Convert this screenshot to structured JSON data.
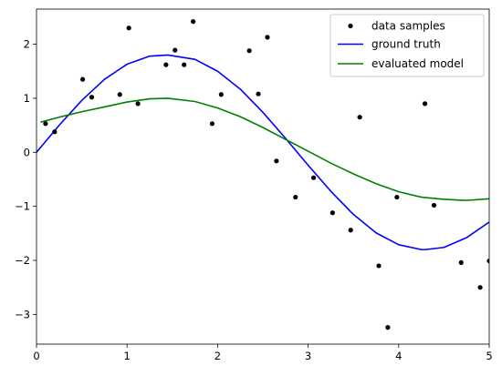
{
  "chart_data": {
    "type": "line",
    "title": "",
    "xlabel": "",
    "ylabel": "",
    "xlim": [
      0,
      5
    ],
    "ylim": [
      -3.55,
      2.65
    ],
    "xticks": [
      0,
      1,
      2,
      3,
      4,
      5
    ],
    "xtick_labels": [
      "0",
      "1",
      "2",
      "3",
      "4",
      "5"
    ],
    "yticks": [
      -3,
      -2,
      -1,
      0,
      1,
      2
    ],
    "ytick_labels": [
      "−3",
      "−2",
      "−1",
      "0",
      "1",
      "2"
    ],
    "grid": false,
    "legend_position": "top-right",
    "series": [
      {
        "name": "data samples",
        "kind": "scatter",
        "color": "#000000",
        "x": [
          0.1,
          0.2,
          0.51,
          0.61,
          0.92,
          1.02,
          1.12,
          1.43,
          1.53,
          1.63,
          1.73,
          1.94,
          2.04,
          2.35,
          2.45,
          2.55,
          2.65,
          2.86,
          3.06,
          3.27,
          3.47,
          3.57,
          3.78,
          3.88,
          3.98,
          4.29,
          4.39,
          4.69,
          4.9,
          5.0
        ],
        "y": [
          0.53,
          0.38,
          1.35,
          1.02,
          1.07,
          2.3,
          0.9,
          1.62,
          1.89,
          1.62,
          2.42,
          0.53,
          1.07,
          1.88,
          1.08,
          2.13,
          -0.16,
          -0.83,
          -0.47,
          -1.12,
          -1.44,
          0.65,
          -2.1,
          -3.24,
          -0.83,
          0.9,
          -0.98,
          -2.04,
          -2.5,
          -2.01
        ]
      },
      {
        "name": "ground truth",
        "kind": "line",
        "color": "#0000ff",
        "x": [
          0,
          0.25,
          0.5,
          0.75,
          1.0,
          1.25,
          1.45,
          1.75,
          2.0,
          2.25,
          2.5,
          2.75,
          3.0,
          3.25,
          3.5,
          3.75,
          4.0,
          4.25,
          4.3,
          4.5,
          4.75,
          5.0
        ],
        "y": [
          0.0,
          0.5,
          0.96,
          1.35,
          1.63,
          1.78,
          1.8,
          1.72,
          1.5,
          1.17,
          0.74,
          0.26,
          -0.24,
          -0.72,
          -1.15,
          -1.49,
          -1.71,
          -1.8,
          -1.8,
          -1.76,
          -1.58,
          -1.29
        ]
      },
      {
        "name": "evaluated model",
        "kind": "line",
        "color": "#008000",
        "x": [
          0.05,
          0.25,
          0.5,
          0.75,
          1.0,
          1.25,
          1.45,
          1.75,
          2.0,
          2.25,
          2.5,
          2.75,
          3.0,
          3.25,
          3.5,
          3.75,
          4.0,
          4.25,
          4.5,
          4.75,
          5.0
        ],
        "y": [
          0.56,
          0.65,
          0.75,
          0.84,
          0.93,
          0.99,
          1.0,
          0.94,
          0.82,
          0.66,
          0.46,
          0.24,
          0.02,
          -0.2,
          -0.4,
          -0.58,
          -0.73,
          -0.83,
          -0.87,
          -0.89,
          -0.86
        ]
      }
    ]
  }
}
